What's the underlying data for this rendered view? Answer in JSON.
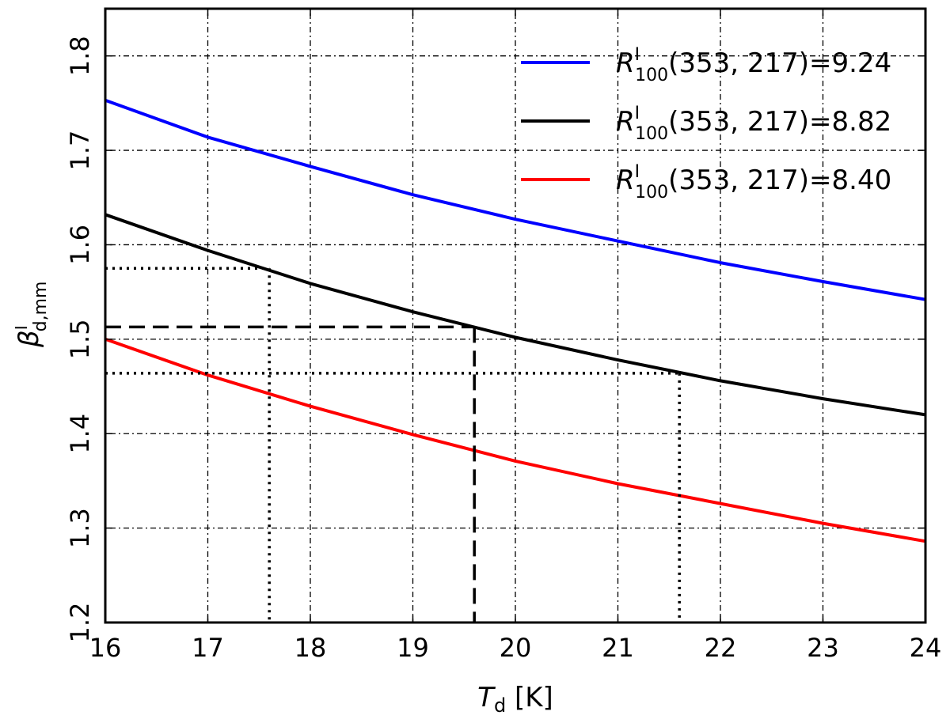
{
  "chart_data": {
    "type": "line",
    "xlabel": {
      "symbol": "T",
      "subscript": "d",
      "unit": " [K]"
    },
    "ylabel": {
      "symbol": "β",
      "superscript": "I",
      "subscript": "d,mm"
    },
    "xlim": [
      16,
      24
    ],
    "ylim": [
      1.2,
      1.85
    ],
    "x_ticks": [
      16,
      17,
      18,
      19,
      20,
      21,
      22,
      23,
      24
    ],
    "y_ticks": [
      1.2,
      1.3,
      1.4,
      1.5,
      1.6,
      1.7,
      1.8
    ],
    "x_tick_labels": [
      "16",
      "17",
      "18",
      "19",
      "20",
      "21",
      "22",
      "23",
      "24"
    ],
    "y_tick_labels": [
      "1.2",
      "1.3",
      "1.4",
      "1.5",
      "1.6",
      "1.7",
      "1.8"
    ],
    "grid": true,
    "legend_position": "top-right",
    "x": [
      16,
      17,
      18,
      19,
      20,
      21,
      22,
      23,
      24
    ],
    "series": [
      {
        "name": "R^I_100(353, 217)=9.24",
        "legend_symbol": "R",
        "legend_sup": "I",
        "legend_sub": "100",
        "legend_text": "(353, 217)=9.24",
        "color": "#0000ff",
        "values": [
          1.753,
          1.714,
          1.683,
          1.653,
          1.627,
          1.604,
          1.581,
          1.561,
          1.542
        ]
      },
      {
        "name": "R^I_100(353, 217)=8.82",
        "legend_symbol": "R",
        "legend_sup": "I",
        "legend_sub": "100",
        "legend_text": "(353, 217)=8.82",
        "color": "#000000",
        "values": [
          1.632,
          1.594,
          1.559,
          1.529,
          1.502,
          1.478,
          1.456,
          1.437,
          1.42
        ]
      },
      {
        "name": "R^I_100(353, 217)=8.40",
        "legend_symbol": "R",
        "legend_sup": "I",
        "legend_sub": "100",
        "legend_text": "(353, 217)=8.40",
        "color": "#ff0000",
        "values": [
          1.5,
          1.462,
          1.429,
          1.399,
          1.371,
          1.347,
          1.326,
          1.305,
          1.286
        ]
      }
    ],
    "annotations": [
      {
        "style": "dashed",
        "x": 19.6,
        "y": 1.513
      },
      {
        "style": "dotted",
        "x": 17.6,
        "y": 1.575
      },
      {
        "style": "dotted",
        "x": 21.6,
        "y": 1.464
      }
    ]
  }
}
